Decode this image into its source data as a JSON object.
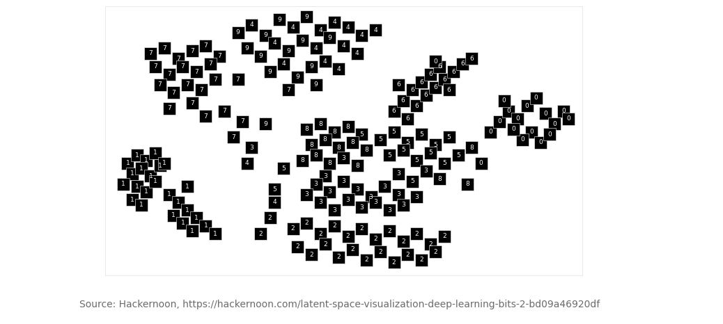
{
  "chart_data": {
    "type": "scatter",
    "caption": "Source: Hackernoon, https://hackernoon.com/latent-space-visualization-deep-learning-bits-2-bd09a46920df",
    "xlim": [
      -2,
      102
    ],
    "ylim": [
      -3,
      100
    ],
    "tick_labels": false,
    "grid": false,
    "color": "#000000",
    "marker": "square",
    "points": [
      {
        "x": 8,
        "y": 82,
        "label": "7"
      },
      {
        "x": 11,
        "y": 84,
        "label": "7"
      },
      {
        "x": 14,
        "y": 80,
        "label": "7"
      },
      {
        "x": 17,
        "y": 83,
        "label": "7"
      },
      {
        "x": 20,
        "y": 85,
        "label": "7"
      },
      {
        "x": 23,
        "y": 81,
        "label": "7"
      },
      {
        "x": 9,
        "y": 77,
        "label": "7"
      },
      {
        "x": 12,
        "y": 74,
        "label": "7"
      },
      {
        "x": 15,
        "y": 77,
        "label": "7"
      },
      {
        "x": 18,
        "y": 75,
        "label": "7"
      },
      {
        "x": 21,
        "y": 78,
        "label": "7"
      },
      {
        "x": 10,
        "y": 70,
        "label": "7"
      },
      {
        "x": 13,
        "y": 67,
        "label": "7"
      },
      {
        "x": 16,
        "y": 70,
        "label": "7"
      },
      {
        "x": 19,
        "y": 68,
        "label": "7"
      },
      {
        "x": 22,
        "y": 72,
        "label": "7"
      },
      {
        "x": 12,
        "y": 61,
        "label": "7"
      },
      {
        "x": 17,
        "y": 63,
        "label": "7"
      },
      {
        "x": 20,
        "y": 58,
        "label": "7"
      },
      {
        "x": 24,
        "y": 60,
        "label": "7"
      },
      {
        "x": 27,
        "y": 90,
        "label": "9"
      },
      {
        "x": 30,
        "y": 93,
        "label": "4"
      },
      {
        "x": 33,
        "y": 89,
        "label": "9"
      },
      {
        "x": 36,
        "y": 95,
        "label": "9"
      },
      {
        "x": 39,
        "y": 92,
        "label": "4"
      },
      {
        "x": 42,
        "y": 96,
        "label": "9"
      },
      {
        "x": 45,
        "y": 91,
        "label": "4"
      },
      {
        "x": 48,
        "y": 94,
        "label": "4"
      },
      {
        "x": 51,
        "y": 92,
        "label": "4"
      },
      {
        "x": 54,
        "y": 89,
        "label": "4"
      },
      {
        "x": 57,
        "y": 91,
        "label": "4"
      },
      {
        "x": 29,
        "y": 84,
        "label": "9"
      },
      {
        "x": 32,
        "y": 81,
        "label": "9"
      },
      {
        "x": 35,
        "y": 86,
        "label": "4"
      },
      {
        "x": 38,
        "y": 83,
        "label": "9"
      },
      {
        "x": 41,
        "y": 87,
        "label": "9"
      },
      {
        "x": 44,
        "y": 84,
        "label": "4"
      },
      {
        "x": 47,
        "y": 88,
        "label": "9"
      },
      {
        "x": 50,
        "y": 85,
        "label": "4"
      },
      {
        "x": 53,
        "y": 82,
        "label": "4"
      },
      {
        "x": 34,
        "y": 75,
        "label": "9"
      },
      {
        "x": 37,
        "y": 78,
        "label": "4"
      },
      {
        "x": 40,
        "y": 73,
        "label": "9"
      },
      {
        "x": 43,
        "y": 77,
        "label": "9"
      },
      {
        "x": 46,
        "y": 79,
        "label": "4"
      },
      {
        "x": 49,
        "y": 76,
        "label": "4"
      },
      {
        "x": 38,
        "y": 68,
        "label": "7"
      },
      {
        "x": 44,
        "y": 70,
        "label": "9"
      },
      {
        "x": 27,
        "y": 72,
        "label": "7"
      },
      {
        "x": 3,
        "y": 40,
        "label": "1"
      },
      {
        "x": 5,
        "y": 43,
        "label": "1"
      },
      {
        "x": 7,
        "y": 41,
        "label": "1"
      },
      {
        "x": 9,
        "y": 44,
        "label": "1"
      },
      {
        "x": 4,
        "y": 36,
        "label": "1"
      },
      {
        "x": 6,
        "y": 38,
        "label": "1"
      },
      {
        "x": 8,
        "y": 35,
        "label": "1"
      },
      {
        "x": 10,
        "y": 39,
        "label": "1"
      },
      {
        "x": 2,
        "y": 32,
        "label": "1"
      },
      {
        "x": 5,
        "y": 31,
        "label": "1"
      },
      {
        "x": 7,
        "y": 29,
        "label": "1"
      },
      {
        "x": 9,
        "y": 33,
        "label": "1"
      },
      {
        "x": 4,
        "y": 26,
        "label": "1"
      },
      {
        "x": 6,
        "y": 24,
        "label": "1"
      },
      {
        "x": 12,
        "y": 28,
        "label": "1"
      },
      {
        "x": 14,
        "y": 25,
        "label": "1"
      },
      {
        "x": 16,
        "y": 22,
        "label": "1"
      },
      {
        "x": 18,
        "y": 19,
        "label": "1"
      },
      {
        "x": 13,
        "y": 20,
        "label": "1"
      },
      {
        "x": 15,
        "y": 17,
        "label": "1"
      },
      {
        "x": 17,
        "y": 14,
        "label": "1"
      },
      {
        "x": 20,
        "y": 16,
        "label": "1"
      },
      {
        "x": 22,
        "y": 13,
        "label": "1"
      },
      {
        "x": 11,
        "y": 40,
        "label": "1"
      },
      {
        "x": 16,
        "y": 31,
        "label": "1"
      },
      {
        "x": 61,
        "y": 60,
        "label": "6"
      },
      {
        "x": 63,
        "y": 64,
        "label": "6"
      },
      {
        "x": 66,
        "y": 62,
        "label": "6"
      },
      {
        "x": 68,
        "y": 66,
        "label": "6"
      },
      {
        "x": 70,
        "y": 69,
        "label": "6"
      },
      {
        "x": 72,
        "y": 72,
        "label": "6"
      },
      {
        "x": 74,
        "y": 75,
        "label": "6"
      },
      {
        "x": 76,
        "y": 78,
        "label": "6"
      },
      {
        "x": 78,
        "y": 80,
        "label": "6"
      },
      {
        "x": 65,
        "y": 68,
        "label": "6"
      },
      {
        "x": 67,
        "y": 71,
        "label": "6"
      },
      {
        "x": 69,
        "y": 74,
        "label": "6"
      },
      {
        "x": 71,
        "y": 77,
        "label": "6"
      },
      {
        "x": 62,
        "y": 70,
        "label": "6"
      },
      {
        "x": 64,
        "y": 57,
        "label": "6"
      },
      {
        "x": 73,
        "y": 68,
        "label": "6"
      },
      {
        "x": 82,
        "y": 52,
        "label": "0"
      },
      {
        "x": 84,
        "y": 56,
        "label": "0"
      },
      {
        "x": 86,
        "y": 60,
        "label": "0"
      },
      {
        "x": 88,
        "y": 57,
        "label": "0"
      },
      {
        "x": 90,
        "y": 62,
        "label": "0"
      },
      {
        "x": 92,
        "y": 65,
        "label": "0"
      },
      {
        "x": 94,
        "y": 59,
        "label": "0"
      },
      {
        "x": 96,
        "y": 55,
        "label": "0"
      },
      {
        "x": 98,
        "y": 60,
        "label": "0"
      },
      {
        "x": 91,
        "y": 52,
        "label": "0"
      },
      {
        "x": 89,
        "y": 49,
        "label": "0"
      },
      {
        "x": 93,
        "y": 48,
        "label": "0"
      },
      {
        "x": 95,
        "y": 51,
        "label": "0"
      },
      {
        "x": 87,
        "y": 53,
        "label": "0"
      },
      {
        "x": 99,
        "y": 57,
        "label": "0"
      },
      {
        "x": 85,
        "y": 64,
        "label": "0"
      },
      {
        "x": 42,
        "y": 53,
        "label": "8"
      },
      {
        "x": 45,
        "y": 55,
        "label": "8"
      },
      {
        "x": 48,
        "y": 52,
        "label": "8"
      },
      {
        "x": 51,
        "y": 54,
        "label": "8"
      },
      {
        "x": 54,
        "y": 51,
        "label": "5"
      },
      {
        "x": 43,
        "y": 47,
        "label": "8"
      },
      {
        "x": 46,
        "y": 49,
        "label": "8"
      },
      {
        "x": 49,
        "y": 46,
        "label": "8"
      },
      {
        "x": 52,
        "y": 48,
        "label": "8"
      },
      {
        "x": 55,
        "y": 45,
        "label": "8"
      },
      {
        "x": 41,
        "y": 41,
        "label": "8"
      },
      {
        "x": 44,
        "y": 43,
        "label": "8"
      },
      {
        "x": 47,
        "y": 40,
        "label": "8"
      },
      {
        "x": 50,
        "y": 42,
        "label": "3"
      },
      {
        "x": 53,
        "y": 39,
        "label": "8"
      },
      {
        "x": 46,
        "y": 35,
        "label": "3"
      },
      {
        "x": 58,
        "y": 49,
        "label": "5"
      },
      {
        "x": 61,
        "y": 52,
        "label": "5"
      },
      {
        "x": 64,
        "y": 48,
        "label": "5"
      },
      {
        "x": 67,
        "y": 51,
        "label": "5"
      },
      {
        "x": 70,
        "y": 47,
        "label": "5"
      },
      {
        "x": 73,
        "y": 50,
        "label": "5"
      },
      {
        "x": 60,
        "y": 43,
        "label": "5"
      },
      {
        "x": 63,
        "y": 45,
        "label": "5"
      },
      {
        "x": 66,
        "y": 41,
        "label": "5"
      },
      {
        "x": 69,
        "y": 44,
        "label": "5"
      },
      {
        "x": 72,
        "y": 40,
        "label": "5"
      },
      {
        "x": 75,
        "y": 43,
        "label": "5"
      },
      {
        "x": 62,
        "y": 36,
        "label": "3"
      },
      {
        "x": 65,
        "y": 33,
        "label": "5"
      },
      {
        "x": 68,
        "y": 37,
        "label": "3"
      },
      {
        "x": 71,
        "y": 34,
        "label": "8"
      },
      {
        "x": 44,
        "y": 32,
        "label": "3"
      },
      {
        "x": 47,
        "y": 29,
        "label": "3"
      },
      {
        "x": 50,
        "y": 33,
        "label": "3"
      },
      {
        "x": 53,
        "y": 30,
        "label": "3"
      },
      {
        "x": 56,
        "y": 27,
        "label": "3"
      },
      {
        "x": 59,
        "y": 31,
        "label": "3"
      },
      {
        "x": 62,
        "y": 28,
        "label": "3"
      },
      {
        "x": 45,
        "y": 25,
        "label": "3"
      },
      {
        "x": 48,
        "y": 22,
        "label": "3"
      },
      {
        "x": 51,
        "y": 26,
        "label": "3"
      },
      {
        "x": 54,
        "y": 23,
        "label": "3"
      },
      {
        "x": 57,
        "y": 25,
        "label": "3"
      },
      {
        "x": 60,
        "y": 22,
        "label": "3"
      },
      {
        "x": 63,
        "y": 24,
        "label": "3"
      },
      {
        "x": 66,
        "y": 27,
        "label": "3"
      },
      {
        "x": 42,
        "y": 28,
        "label": "3"
      },
      {
        "x": 39,
        "y": 15,
        "label": "2"
      },
      {
        "x": 42,
        "y": 17,
        "label": "2"
      },
      {
        "x": 45,
        "y": 13,
        "label": "2"
      },
      {
        "x": 48,
        "y": 16,
        "label": "2"
      },
      {
        "x": 51,
        "y": 12,
        "label": "2"
      },
      {
        "x": 54,
        "y": 15,
        "label": "2"
      },
      {
        "x": 57,
        "y": 11,
        "label": "2"
      },
      {
        "x": 60,
        "y": 14,
        "label": "2"
      },
      {
        "x": 63,
        "y": 10,
        "label": "2"
      },
      {
        "x": 66,
        "y": 13,
        "label": "2"
      },
      {
        "x": 69,
        "y": 9,
        "label": "2"
      },
      {
        "x": 72,
        "y": 12,
        "label": "2"
      },
      {
        "x": 40,
        "y": 8,
        "label": "2"
      },
      {
        "x": 43,
        "y": 5,
        "label": "2"
      },
      {
        "x": 46,
        "y": 9,
        "label": "2"
      },
      {
        "x": 49,
        "y": 4,
        "label": "2"
      },
      {
        "x": 52,
        "y": 7,
        "label": "2"
      },
      {
        "x": 55,
        "y": 3,
        "label": "2"
      },
      {
        "x": 58,
        "y": 6,
        "label": "2"
      },
      {
        "x": 61,
        "y": 2,
        "label": "2"
      },
      {
        "x": 64,
        "y": 5,
        "label": "2"
      },
      {
        "x": 67,
        "y": 3,
        "label": "2"
      },
      {
        "x": 70,
        "y": 6,
        "label": "2"
      },
      {
        "x": 32,
        "y": 13,
        "label": "2"
      },
      {
        "x": 34,
        "y": 19,
        "label": "2"
      },
      {
        "x": 35,
        "y": 30,
        "label": "5"
      },
      {
        "x": 35,
        "y": 25,
        "label": "4"
      },
      {
        "x": 26,
        "y": 50,
        "label": "7"
      },
      {
        "x": 29,
        "y": 40,
        "label": "4"
      },
      {
        "x": 30,
        "y": 46,
        "label": "3"
      },
      {
        "x": 33,
        "y": 55,
        "label": "9"
      },
      {
        "x": 28,
        "y": 56,
        "label": "7"
      },
      {
        "x": 37,
        "y": 38,
        "label": "5"
      },
      {
        "x": 78,
        "y": 46,
        "label": "8"
      },
      {
        "x": 80,
        "y": 40,
        "label": "0"
      },
      {
        "x": 77,
        "y": 32,
        "label": "8"
      },
      {
        "x": 70,
        "y": 79,
        "label": "0"
      }
    ]
  }
}
